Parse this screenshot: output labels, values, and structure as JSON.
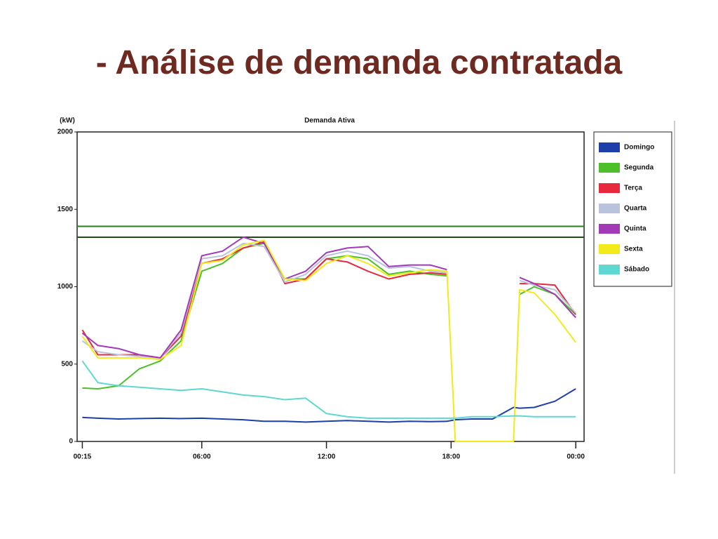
{
  "slide_title": "- Análise de demanda contratada",
  "chart_data": {
    "type": "line",
    "title": "Demanda Ativa",
    "y_label": "(kW)",
    "x": [
      0.25,
      1,
      2,
      3,
      4,
      5,
      6,
      7,
      8,
      9,
      10,
      11,
      12,
      13,
      14,
      15,
      16,
      17,
      17.8,
      18.2,
      19,
      20,
      21,
      21.3,
      22,
      23,
      24
    ],
    "xlim": [
      0,
      24.4
    ],
    "xticks": [
      {
        "value": 0.25,
        "label": "00:15"
      },
      {
        "value": 6,
        "label": "06:00"
      },
      {
        "value": 12,
        "label": "12:00"
      },
      {
        "value": 18,
        "label": "18:00"
      },
      {
        "value": 24,
        "label": "00:00"
      }
    ],
    "ylim": [
      0,
      2000
    ],
    "yticks": [
      0,
      500,
      1000,
      1500,
      2000
    ],
    "hlines": [
      {
        "value": 1390,
        "color": "#2e7d1e"
      },
      {
        "value": 1320,
        "color": "#1f4d14"
      }
    ],
    "legend": "right",
    "series": [
      {
        "name": "Domingo",
        "color": "#1f3fa8",
        "values": [
          155,
          150,
          145,
          148,
          150,
          148,
          150,
          145,
          140,
          130,
          130,
          125,
          130,
          135,
          130,
          125,
          130,
          128,
          130,
          140,
          145,
          145,
          220,
          215,
          220,
          260,
          340
        ]
      },
      {
        "name": "Segunda",
        "color": "#4cbf2a",
        "values": [
          345,
          340,
          360,
          470,
          520,
          650,
          1100,
          1150,
          1250,
          1280,
          1050,
          1050,
          1180,
          1200,
          1180,
          1080,
          1100,
          1080,
          1070,
          null,
          null,
          null,
          null,
          950,
          1000,
          950,
          820
        ]
      },
      {
        "name": "Terça",
        "color": "#e8283c",
        "values": [
          720,
          560,
          560,
          560,
          540,
          680,
          1150,
          1180,
          1250,
          1290,
          1020,
          1050,
          1180,
          1160,
          1100,
          1050,
          1080,
          1090,
          1080,
          null,
          null,
          null,
          null,
          1020,
          1020,
          1010,
          820
        ]
      },
      {
        "name": "Quarta",
        "color": "#b9c3dc",
        "values": [
          650,
          580,
          560,
          550,
          540,
          700,
          1180,
          1200,
          1280,
          1260,
          1030,
          1080,
          1200,
          1230,
          1200,
          1120,
          1130,
          1100,
          1090,
          null,
          null,
          null,
          null,
          1040,
          1010,
          980,
          830
        ]
      },
      {
        "name": "Quinta",
        "color": "#a23ab8",
        "values": [
          700,
          620,
          600,
          560,
          540,
          720,
          1200,
          1230,
          1320,
          1280,
          1050,
          1100,
          1220,
          1250,
          1260,
          1130,
          1140,
          1140,
          1110,
          null,
          null,
          null,
          null,
          1060,
          1020,
          950,
          800
        ]
      },
      {
        "name": "Sexta",
        "color": "#f2ea1a",
        "values": [
          680,
          540,
          540,
          540,
          530,
          620,
          1150,
          1170,
          1270,
          1300,
          1050,
          1040,
          1150,
          1200,
          1150,
          1070,
          1090,
          1110,
          1100,
          0,
          0,
          0,
          0,
          980,
          960,
          820,
          640
        ]
      },
      {
        "name": "Sábado",
        "color": "#5ed8d0",
        "values": [
          520,
          380,
          360,
          350,
          340,
          330,
          340,
          320,
          300,
          290,
          270,
          280,
          180,
          160,
          150,
          150,
          150,
          150,
          150,
          150,
          160,
          160,
          165,
          165,
          160,
          160,
          160
        ]
      }
    ]
  }
}
